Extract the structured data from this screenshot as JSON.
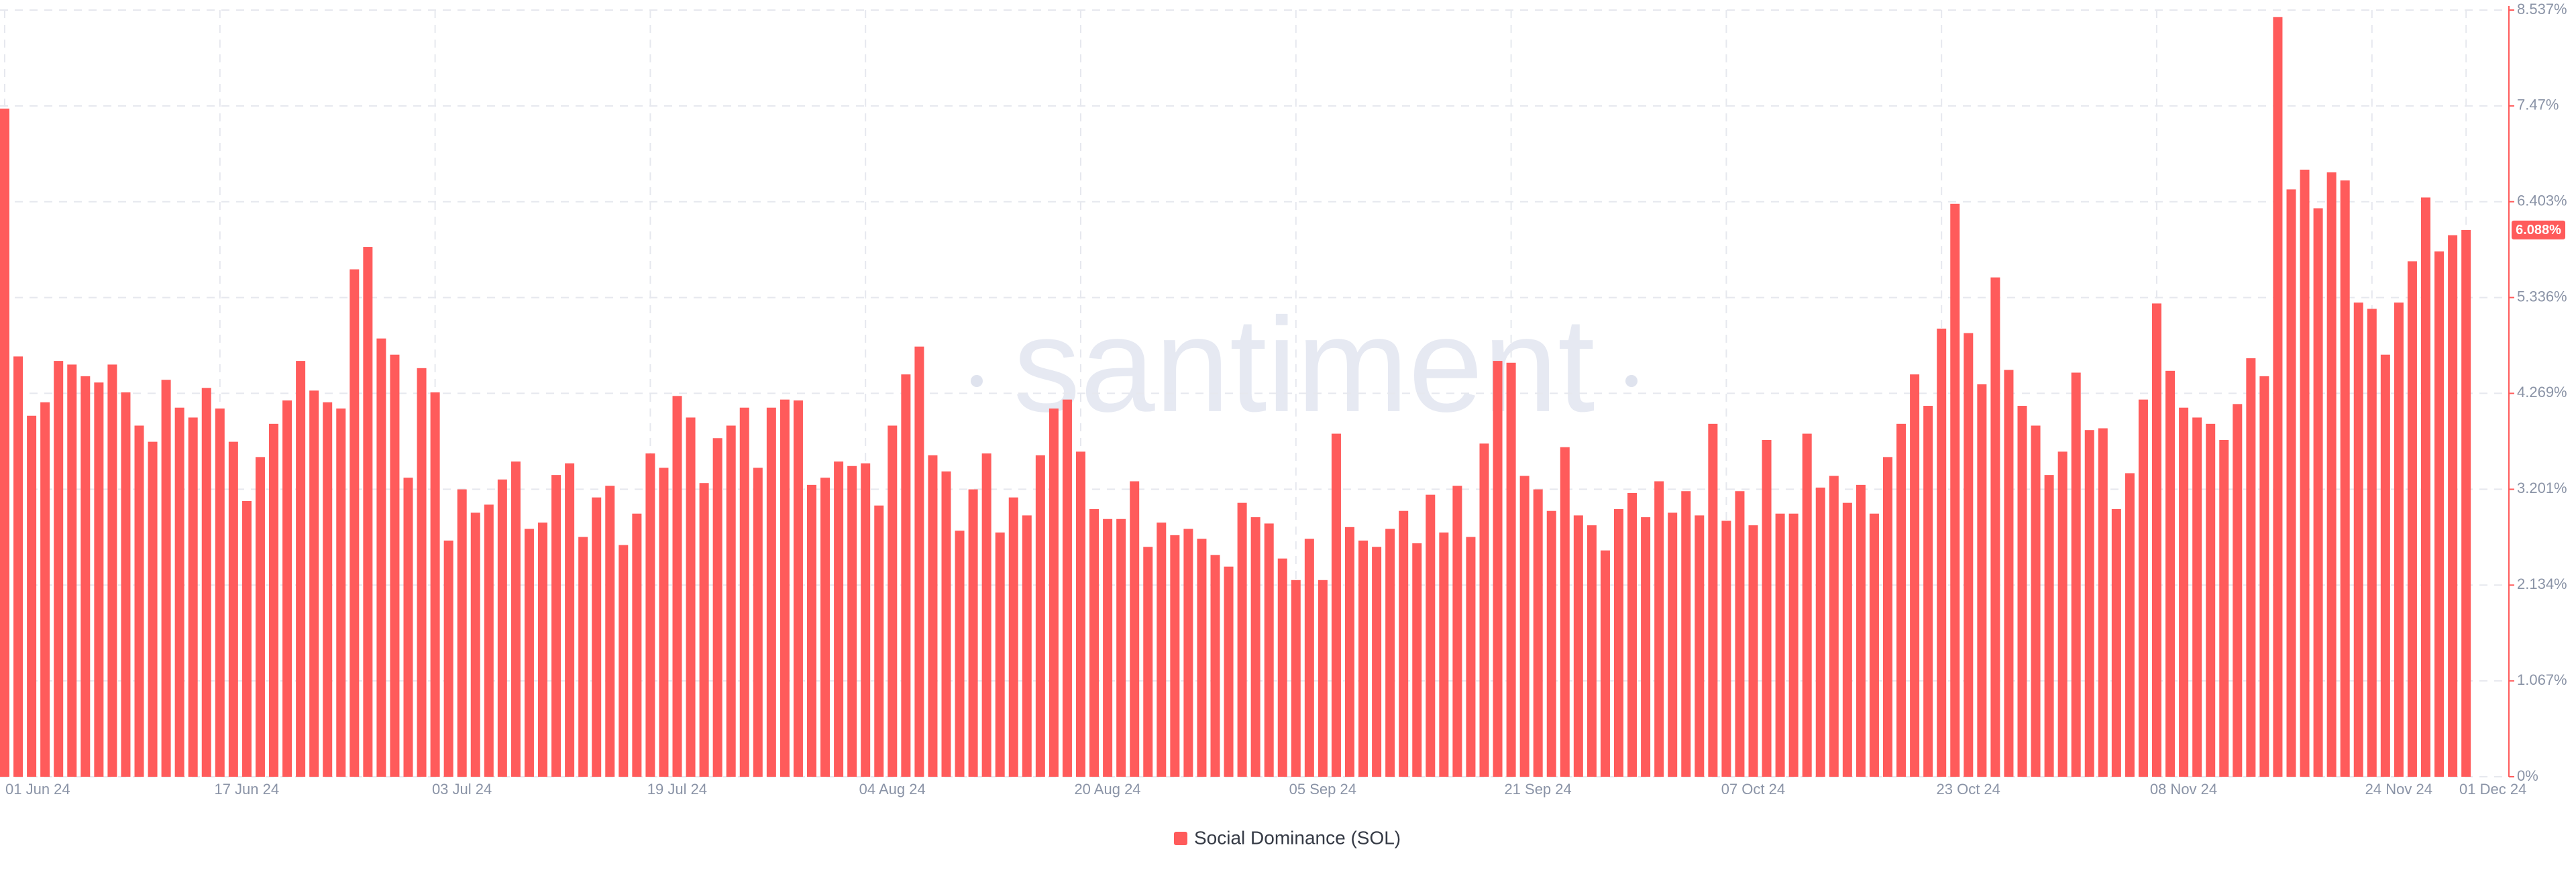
{
  "chart_data": {
    "type": "bar",
    "watermark": "santiment",
    "categories": [
      "01 Jun 24",
      null,
      null,
      null,
      null,
      null,
      null,
      null,
      null,
      null,
      null,
      null,
      null,
      null,
      null,
      null,
      "17 Jun 24",
      null,
      null,
      null,
      null,
      null,
      null,
      null,
      null,
      null,
      null,
      null,
      null,
      null,
      null,
      null,
      "03 Jul 24",
      null,
      null,
      null,
      null,
      null,
      null,
      null,
      null,
      null,
      null,
      null,
      null,
      null,
      null,
      null,
      "19 Jul 24",
      null,
      null,
      null,
      null,
      null,
      null,
      null,
      null,
      null,
      null,
      null,
      null,
      null,
      null,
      null,
      "04 Aug 24",
      null,
      null,
      null,
      null,
      null,
      null,
      null,
      null,
      null,
      null,
      null,
      null,
      null,
      null,
      null,
      "20 Aug 24",
      null,
      null,
      null,
      null,
      null,
      null,
      null,
      null,
      null,
      null,
      null,
      null,
      null,
      null,
      null,
      "05 Sep 24",
      null,
      null,
      null,
      null,
      null,
      null,
      null,
      null,
      null,
      null,
      null,
      null,
      null,
      null,
      null,
      "21 Sep 24",
      null,
      null,
      null,
      null,
      null,
      null,
      null,
      null,
      null,
      null,
      null,
      null,
      null,
      null,
      null,
      "07 Oct 24",
      null,
      null,
      null,
      null,
      null,
      null,
      null,
      null,
      null,
      null,
      null,
      null,
      null,
      null,
      null,
      "23 Oct 24",
      null,
      null,
      null,
      null,
      null,
      null,
      null,
      null,
      null,
      null,
      null,
      null,
      null,
      null,
      null,
      "08 Nov 24",
      null,
      null,
      null,
      null,
      null,
      null,
      null,
      null,
      null,
      null,
      null,
      null,
      null,
      null,
      null,
      "24 Nov 24",
      null,
      null,
      null,
      null,
      null,
      null,
      "01 Dec 24"
    ],
    "series": [
      {
        "name": "Social Dominance (SOL)",
        "color": "#ff5b5b",
        "values": [
          7.44,
          4.68,
          4.02,
          4.17,
          4.63,
          4.59,
          4.46,
          4.39,
          4.59,
          4.28,
          3.91,
          3.73,
          4.42,
          4.11,
          4.0,
          4.33,
          4.1,
          3.73,
          3.07,
          3.56,
          3.93,
          4.19,
          4.63,
          4.3,
          4.17,
          4.1,
          5.65,
          5.9,
          4.88,
          4.7,
          3.33,
          4.55,
          4.28,
          2.63,
          3.2,
          2.94,
          3.03,
          3.31,
          3.51,
          2.76,
          2.83,
          3.36,
          3.49,
          2.67,
          3.11,
          3.24,
          2.58,
          2.93,
          3.6,
          3.44,
          4.24,
          4.0,
          3.27,
          3.77,
          3.91,
          4.11,
          3.44,
          4.11,
          4.2,
          4.19,
          3.25,
          3.33,
          3.51,
          3.46,
          3.49,
          3.02,
          3.91,
          4.48,
          4.79,
          3.58,
          3.4,
          2.74,
          3.2,
          3.6,
          2.72,
          3.11,
          2.91,
          3.58,
          4.1,
          4.2,
          3.62,
          2.98,
          2.87,
          2.87,
          3.29,
          2.56,
          2.83,
          2.69,
          2.76,
          2.65,
          2.47,
          2.34,
          3.05,
          2.89,
          2.82,
          2.43,
          2.19,
          2.65,
          2.19,
          3.82,
          2.78,
          2.63,
          2.56,
          2.76,
          2.96,
          2.6,
          3.14,
          2.72,
          3.24,
          2.67,
          3.71,
          4.63,
          4.61,
          3.35,
          3.2,
          2.96,
          3.67,
          2.91,
          2.8,
          2.52,
          2.98,
          3.16,
          2.89,
          3.29,
          2.94,
          3.18,
          2.91,
          3.93,
          2.85,
          3.18,
          2.8,
          3.75,
          2.93,
          2.93,
          3.82,
          3.22,
          3.35,
          3.05,
          3.25,
          2.93,
          3.56,
          3.93,
          4.48,
          4.13,
          4.99,
          6.38,
          4.94,
          4.37,
          5.56,
          4.53,
          4.13,
          3.91,
          3.36,
          3.62,
          4.5,
          3.86,
          3.88,
          2.98,
          3.38,
          4.2,
          5.27,
          4.52,
          4.11,
          4.0,
          3.93,
          3.75,
          4.15,
          4.66,
          4.46,
          8.46,
          6.54,
          6.76,
          6.33,
          6.73,
          6.64,
          5.28,
          5.21,
          4.7,
          5.28,
          5.74,
          6.45,
          5.85,
          6.03,
          6.088
        ]
      }
    ],
    "ylim": [
      0,
      8.537
    ],
    "yticks": [
      {
        "value": 0,
        "label": "0%"
      },
      {
        "value": 1.067,
        "label": "1.067%"
      },
      {
        "value": 2.134,
        "label": "2.134%"
      },
      {
        "value": 3.201,
        "label": "3.201%"
      },
      {
        "value": 4.269,
        "label": "4.269%"
      },
      {
        "value": 5.336,
        "label": "5.336%"
      },
      {
        "value": 6.403,
        "label": "6.403%"
      },
      {
        "value": 7.47,
        "label": "7.47%"
      },
      {
        "value": 8.537,
        "label": "8.537%"
      }
    ],
    "marker": {
      "value": 6.088,
      "label": "6.088%"
    },
    "grid": true
  }
}
